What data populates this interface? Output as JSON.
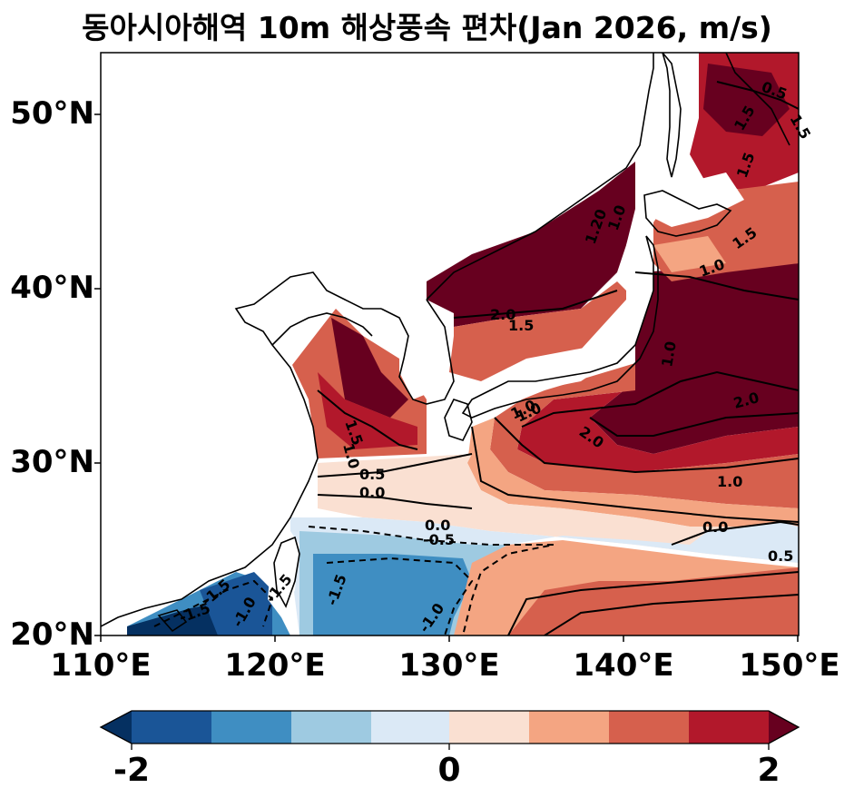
{
  "title": "동아시아해역 10m 해상풍속 편차(Jan 2026, m/s)",
  "map": {
    "region": "East Asian seas",
    "lon_range": [
      110,
      150
    ],
    "lat_range": [
      20,
      53.5
    ],
    "x_tick_labels": [
      "110°E",
      "120°E",
      "130°E",
      "140°E",
      "150°E"
    ],
    "y_tick_labels": [
      "50°N",
      "40°N",
      "30°N",
      "20°N"
    ],
    "contour_labels": [
      "0.5",
      "1.5",
      "1.5",
      "1.5",
      "1.5",
      "1.20",
      "1.0",
      "2.0",
      "1.5",
      "1.0",
      "1.0",
      "2.0",
      "1.5",
      "1.0",
      "1.0",
      "2.0",
      "1.0",
      "0.5",
      "0.0",
      "0.0",
      "0.0",
      "-0.5",
      "0.5",
      "-1.5",
      "-1.5",
      "-1.0",
      "-1.5",
      "-1.0",
      "1.0",
      "-1.5"
    ]
  },
  "colorbar": {
    "tick_labels": [
      "-2",
      "0",
      "2"
    ],
    "range": [
      -2,
      2
    ],
    "colors": [
      "#1a5597",
      "#3f8ec2",
      "#9ecae1",
      "#dbe9f6",
      "#fae0d2",
      "#f4a582",
      "#d6604d",
      "#b2182b",
      "#67001f"
    ],
    "under_color": "#053061",
    "over_color": "#67001f"
  }
}
